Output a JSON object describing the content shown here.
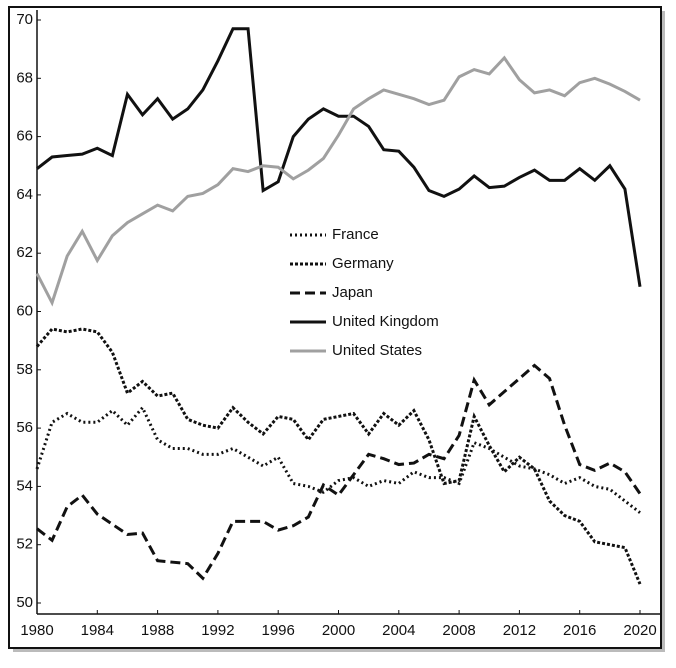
{
  "chart_data": {
    "type": "line",
    "x": [
      1980,
      1981,
      1982,
      1983,
      1984,
      1985,
      1986,
      1987,
      1988,
      1989,
      1990,
      1991,
      1992,
      1993,
      1994,
      1995,
      1996,
      1997,
      1998,
      1999,
      2000,
      2001,
      2002,
      2003,
      2004,
      2005,
      2006,
      2007,
      2008,
      2009,
      2010,
      2011,
      2012,
      2013,
      2014,
      2015,
      2016,
      2017,
      2018,
      2019,
      2020
    ],
    "series": [
      {
        "name": "France",
        "color": "#111111",
        "dash": "2,3",
        "values": [
          54.6,
          56.2,
          56.5,
          56.2,
          56.2,
          56.6,
          56.1,
          56.7,
          55.6,
          55.3,
          55.3,
          55.1,
          55.1,
          55.3,
          55.0,
          54.7,
          55.0,
          54.1,
          54.0,
          53.8,
          54.2,
          54.3,
          54.0,
          54.2,
          54.1,
          54.5,
          54.3,
          54.3,
          54.1,
          55.5,
          55.3,
          55.0,
          54.7,
          54.6,
          54.4,
          54.1,
          54.3,
          54.0,
          53.9,
          53.5,
          53.1
        ]
      },
      {
        "name": "Germany",
        "color": "#111111",
        "dash": "3,2",
        "values": [
          58.8,
          59.4,
          59.3,
          59.4,
          59.3,
          58.6,
          57.2,
          57.6,
          57.1,
          57.2,
          56.3,
          56.1,
          56.0,
          56.7,
          56.2,
          55.8,
          56.4,
          56.3,
          55.6,
          56.3,
          56.4,
          56.5,
          55.8,
          56.5,
          56.1,
          56.6,
          55.6,
          54.1,
          54.2,
          56.4,
          55.4,
          54.5,
          55.0,
          54.6,
          53.5,
          53.0,
          52.8,
          52.1,
          52.0,
          51.9,
          50.65
        ]
      },
      {
        "name": "Japan",
        "color": "#111111",
        "dash": "10,5",
        "values": [
          52.55,
          52.15,
          53.3,
          53.7,
          53.05,
          52.7,
          52.35,
          52.4,
          51.45,
          51.4,
          51.35,
          50.85,
          51.7,
          52.8,
          52.8,
          52.8,
          52.5,
          52.65,
          52.95,
          54.05,
          53.7,
          54.4,
          55.1,
          54.95,
          54.75,
          54.8,
          55.1,
          54.95,
          55.75,
          57.65,
          56.8,
          57.25,
          57.7,
          58.15,
          57.7,
          56.1,
          54.75,
          54.55,
          54.8,
          54.5,
          53.75
        ]
      },
      {
        "name": "United Kingdom",
        "color": "#111111",
        "dash": "none",
        "values": [
          64.9,
          65.3,
          65.35,
          65.4,
          65.6,
          65.35,
          67.45,
          66.75,
          67.3,
          66.6,
          66.95,
          67.6,
          68.6,
          69.7,
          69.7,
          64.15,
          64.45,
          66.0,
          66.6,
          66.95,
          66.7,
          66.7,
          66.35,
          65.55,
          65.5,
          64.95,
          64.15,
          63.95,
          64.2,
          64.65,
          64.25,
          64.3,
          64.6,
          64.85,
          64.5,
          64.5,
          64.9,
          64.5,
          65.0,
          64.2,
          60.85
        ]
      },
      {
        "name": "United States",
        "color": "#a0a0a0",
        "dash": "none",
        "values": [
          61.3,
          60.3,
          61.9,
          62.75,
          61.75,
          62.6,
          63.05,
          63.35,
          63.65,
          63.45,
          63.95,
          64.05,
          64.35,
          64.9,
          64.8,
          65.0,
          64.95,
          64.55,
          64.85,
          65.25,
          66.05,
          66.95,
          67.3,
          67.6,
          67.45,
          67.3,
          67.1,
          67.25,
          68.05,
          68.3,
          68.15,
          68.7,
          67.95,
          67.5,
          67.6,
          67.4,
          67.85,
          68.0,
          67.8,
          67.55,
          67.25
        ]
      }
    ],
    "xlim": [
      1980,
      2020
    ],
    "xticks": [
      1980,
      1984,
      1988,
      1992,
      1996,
      2000,
      2004,
      2008,
      2012,
      2016,
      2020
    ],
    "ylim": [
      50,
      70
    ],
    "yticks": [
      50,
      52,
      54,
      56,
      58,
      60,
      62,
      64,
      66,
      68,
      70
    ],
    "legend": "center"
  }
}
